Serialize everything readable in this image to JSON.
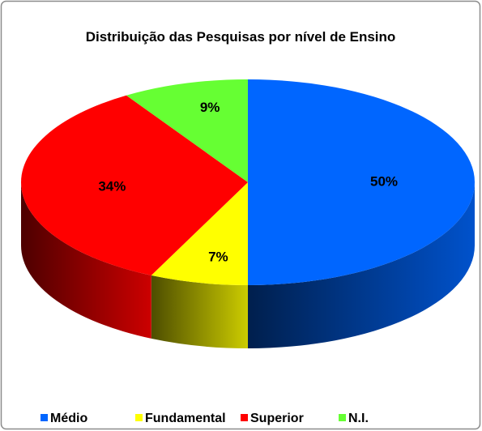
{
  "chart_data": {
    "type": "pie",
    "title": "Distribuição das Pesquisas por nível de Ensino",
    "categories": [
      "Médio",
      "Fundamental",
      "Superior",
      "N.I."
    ],
    "values": [
      50,
      7,
      34,
      9
    ],
    "value_labels": [
      "50%",
      "7%",
      "34%",
      "9%"
    ],
    "colors": [
      "#0066ff",
      "#ffff00",
      "#ff0000",
      "#66ff33"
    ],
    "legend": "bottom"
  }
}
